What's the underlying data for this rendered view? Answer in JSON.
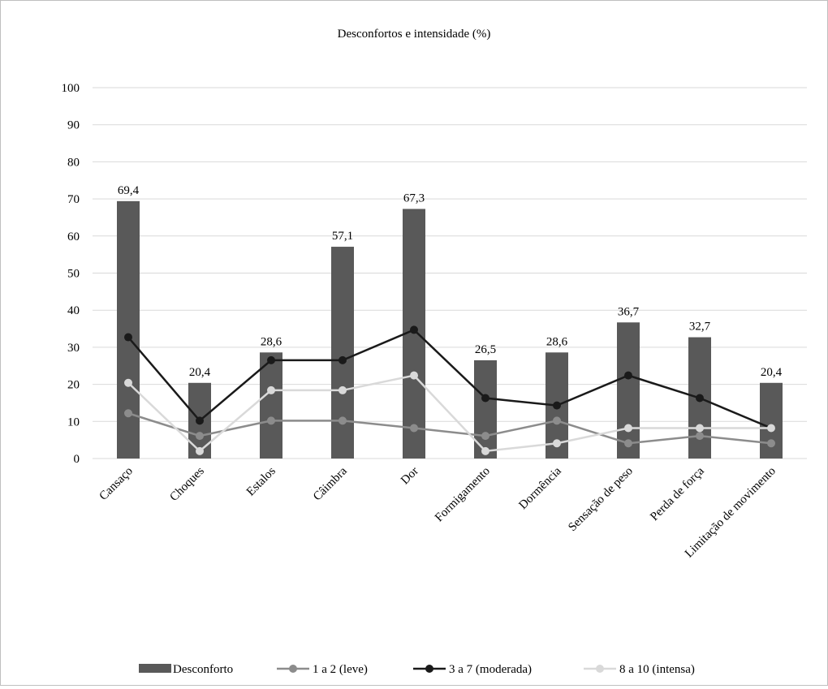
{
  "chart_data": {
    "type": "bar",
    "title": "Desconfortos e intensidade (%)",
    "xlabel": "",
    "ylabel": "",
    "ylim": [
      0,
      100
    ],
    "yticks": [
      0,
      10,
      20,
      30,
      40,
      50,
      60,
      70,
      80,
      90,
      100
    ],
    "grid": true,
    "legend_position": "bottom",
    "categories": [
      "Cansaço",
      "Choques",
      "Estalos",
      "Câimbra",
      "Dor",
      "Formigamento",
      "Dormência",
      "Sensação de peso",
      "Perda de força",
      "Limitação de movimento"
    ],
    "series": [
      {
        "name": "Desconforto",
        "kind": "bar",
        "color": "#595959",
        "values": [
          69.4,
          20.4,
          28.6,
          57.1,
          67.3,
          26.5,
          28.6,
          36.7,
          32.7,
          20.4
        ],
        "labels": [
          "69,4",
          "20,4",
          "28,6",
          "57,1",
          "67,3",
          "26,5",
          "28,6",
          "36,7",
          "32,7",
          "20,4"
        ]
      },
      {
        "name": "1 a 2 (leve)",
        "kind": "line",
        "color": "#8c8c8c",
        "values": [
          12.2,
          6.1,
          10.2,
          10.2,
          8.2,
          6.1,
          10.2,
          4.1,
          6.1,
          4.1
        ]
      },
      {
        "name": "3 a 7 (moderada)",
        "kind": "line",
        "color": "#1a1a1a",
        "values": [
          32.7,
          10.2,
          26.5,
          26.5,
          34.7,
          16.3,
          14.3,
          22.4,
          16.3,
          8.2
        ]
      },
      {
        "name": "8 a 10 (intensa)",
        "kind": "line",
        "color": "#d9d9d9",
        "values": [
          20.4,
          2.0,
          18.4,
          18.4,
          22.4,
          2.0,
          4.1,
          8.2,
          8.2,
          8.2
        ]
      }
    ]
  }
}
